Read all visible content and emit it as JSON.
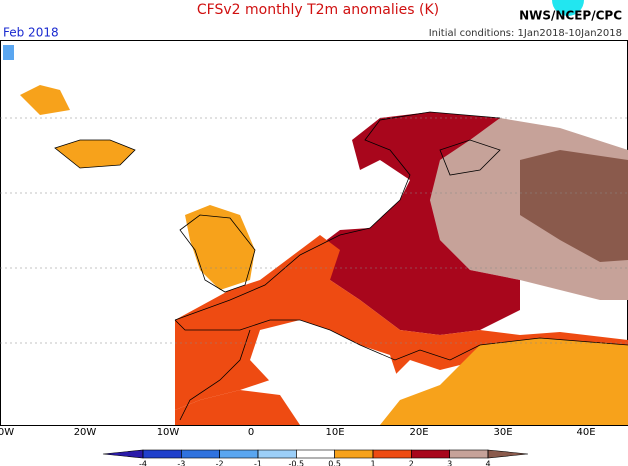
{
  "header": {
    "title": "CFSv2 monthly T2m anomalies (K)",
    "source": "NWS/NCEP/CPC",
    "period": "Feb 2018",
    "conditions": "Initial conditions: 1Jan2018-10Jan2018"
  },
  "map": {
    "lon_labels": [
      "0W",
      "20W",
      "10W",
      "0",
      "10E",
      "20E",
      "30E",
      "40E"
    ]
  },
  "colorbar": {
    "ticks": [
      -4,
      -3,
      -2,
      -1,
      -0.5,
      0.5,
      1,
      2,
      3,
      4
    ],
    "colors": [
      "#2a1aa8",
      "#2040cc",
      "#2f72de",
      "#5aa6f0",
      "#9ccff8",
      "#ffffff",
      "#f7a21b",
      "#ee4b12",
      "#a8061c",
      "#c6a299",
      "#8a5a4c"
    ]
  }
}
